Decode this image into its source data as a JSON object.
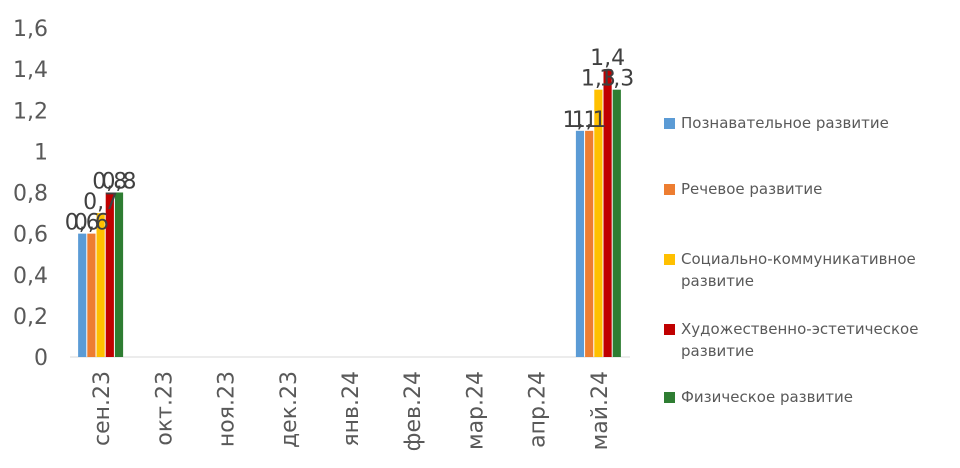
{
  "chart_data": {
    "type": "bar",
    "categories": [
      "сен.23",
      "окт.23",
      "ноя.23",
      "дек.23",
      "янв.24",
      "фев.24",
      "мар.24",
      "апр.24",
      "май.24"
    ],
    "series": [
      {
        "name": "Познавательное развитие",
        "color": "#5B9BD5",
        "values": [
          0.6,
          null,
          null,
          null,
          null,
          null,
          null,
          null,
          1.1
        ]
      },
      {
        "name": "Речевое развитие",
        "color": "#ED7D31",
        "values": [
          0.6,
          null,
          null,
          null,
          null,
          null,
          null,
          null,
          1.1
        ]
      },
      {
        "name": "Социально-коммуникативное развитие",
        "color": "#FFC000",
        "values": [
          0.7,
          null,
          null,
          null,
          null,
          null,
          null,
          null,
          1.3
        ]
      },
      {
        "name": "Художественно-эстетическое развитие",
        "color": "#C00000",
        "values": [
          0.8,
          null,
          null,
          null,
          null,
          null,
          null,
          null,
          1.4
        ]
      },
      {
        "name": "Физическое развитие",
        "color": "#2E7D32",
        "values": [
          0.8,
          null,
          null,
          null,
          null,
          null,
          null,
          null,
          1.3
        ]
      }
    ],
    "data_labels": [
      [
        "0,6",
        "",
        "",
        "",
        "",
        "",
        "",
        "",
        "1,1"
      ],
      [
        "0,6",
        "",
        "",
        "",
        "",
        "",
        "",
        "",
        "1,1"
      ],
      [
        "0,7",
        "",
        "",
        "",
        "",
        "",
        "",
        "",
        "1,3"
      ],
      [
        "0,8",
        "",
        "",
        "",
        "",
        "",
        "",
        "",
        "1,4"
      ],
      [
        "0,8",
        "",
        "",
        "",
        "",
        "",
        "",
        "",
        "1,3"
      ]
    ],
    "ylim": [
      0,
      1.6
    ],
    "yticks": [
      0,
      0.2,
      0.4,
      0.6,
      0.8,
      1,
      1.2,
      1.4,
      1.6
    ],
    "ytick_labels": [
      "0",
      "0,2",
      "0,4",
      "0,6",
      "0,8",
      "1",
      "1,2",
      "1,4",
      "1,6"
    ],
    "grid": false,
    "legend_position": "right",
    "title": "",
    "xlabel": "",
    "ylabel": ""
  }
}
